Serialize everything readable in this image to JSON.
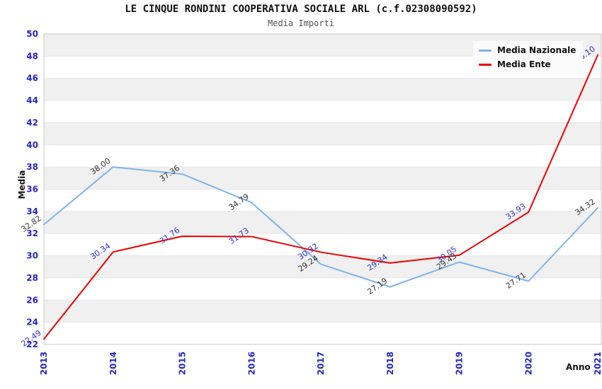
{
  "title": "LE CINQUE RONDINI COOPERATIVA SOCIALE ARL (c.f.02308090592)",
  "subtitle": "Media Importi",
  "axes": {
    "x_title": "Anno",
    "y_title": "Media"
  },
  "legend": {
    "items": [
      {
        "label": "Media Nazionale",
        "color": "#7cb5ec"
      },
      {
        "label": "Media Ente",
        "color": "#ee0000"
      }
    ]
  },
  "chart_data": {
    "type": "line",
    "categories": [
      "2013",
      "2014",
      "2015",
      "2016",
      "2017",
      "2018",
      "2019",
      "2020",
      "2021"
    ],
    "series": [
      {
        "name": "Media Nazionale",
        "color": "#7cb5ec",
        "label_color": "#333333",
        "values": [
          32.82,
          38.0,
          37.36,
          34.79,
          29.24,
          27.19,
          29.43,
          27.71,
          34.32
        ]
      },
      {
        "name": "Media Ente",
        "color": "#ee0000",
        "label_color": "#3333cc",
        "values": [
          22.49,
          30.34,
          31.76,
          31.73,
          30.32,
          29.34,
          30.05,
          33.93,
          48.1
        ]
      }
    ],
    "ylim": [
      22,
      50
    ],
    "y_tick_step": 2,
    "xlabel": "Anno",
    "ylabel": "Media",
    "grid": "horizontal gridlines with alternating shaded bands",
    "legend_position": "top-right",
    "tick_color": "#2525c9",
    "band_color": "#f0f0f0",
    "grid_color": "#e6e6e6",
    "border_color": "#c9c9c9"
  }
}
